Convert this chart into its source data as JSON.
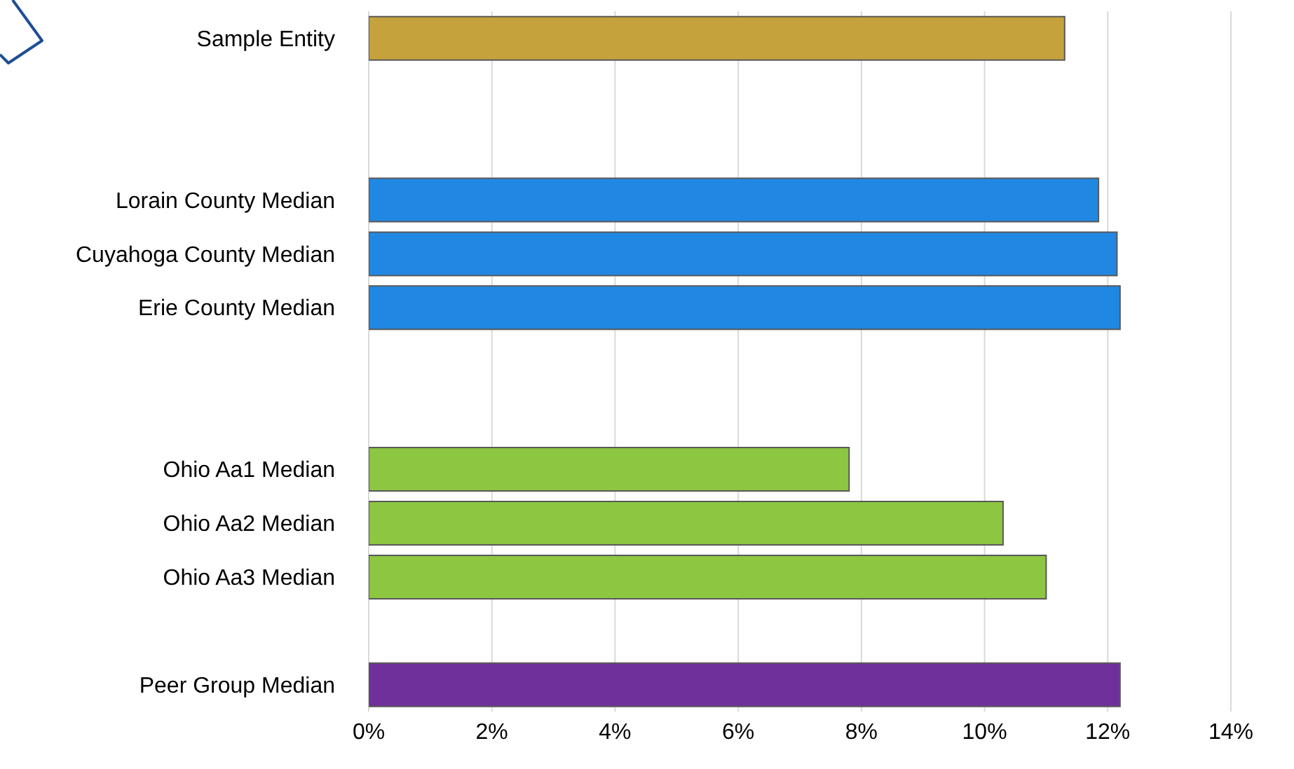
{
  "chart_data": {
    "type": "bar",
    "orientation": "horizontal",
    "categories": [
      "Sample Entity",
      null,
      null,
      "Lorain County Median",
      "Cuyahoga County Median",
      "Erie County Median",
      null,
      null,
      "Ohio Aa1 Median",
      "Ohio Aa2 Median",
      "Ohio Aa3 Median",
      null,
      "Peer Group Median"
    ],
    "values": [
      11.3,
      null,
      null,
      11.85,
      12.15,
      12.2,
      null,
      null,
      7.8,
      10.3,
      11.0,
      null,
      12.2
    ],
    "colors": [
      "#c6a23c",
      null,
      null,
      "#2088e2",
      "#2088e2",
      "#2088e2",
      null,
      null,
      "#8dc641",
      "#8dc641",
      "#8dc641",
      null,
      "#70309c"
    ],
    "xlim": [
      0,
      14
    ],
    "xticks": [
      {
        "value": 0,
        "label": "0%"
      },
      {
        "value": 2,
        "label": "2%"
      },
      {
        "value": 4,
        "label": "4%"
      },
      {
        "value": 6,
        "label": "6%"
      },
      {
        "value": 8,
        "label": "8%"
      },
      {
        "value": 10,
        "label": "10%"
      },
      {
        "value": 12,
        "label": "12%"
      },
      {
        "value": 14,
        "label": "14%"
      }
    ],
    "grid": "x",
    "legend": false
  }
}
